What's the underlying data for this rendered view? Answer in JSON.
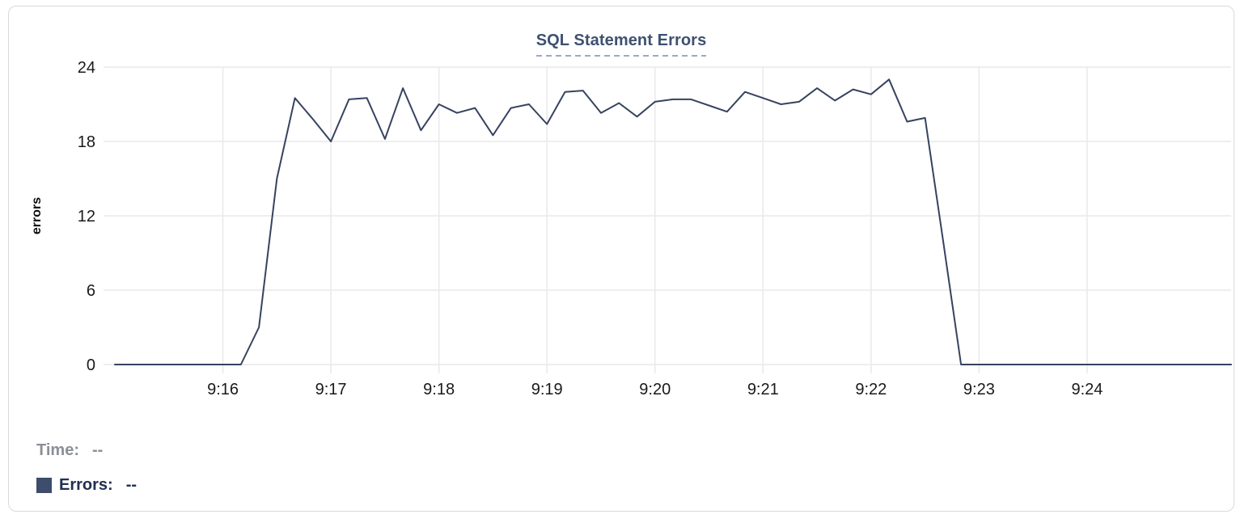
{
  "header": {
    "title": "SQL Statement Errors"
  },
  "legend": {
    "time_label": "Time:",
    "time_value": "--",
    "errors_label": "Errors:",
    "errors_value": "--",
    "swatch_color": "#3d4d6b"
  },
  "chart_data": {
    "type": "line",
    "title": "SQL Statement Errors",
    "xlabel": "",
    "ylabel": "errors",
    "x_start": "9:15:00",
    "x_end": "9:25:20",
    "sample_interval_seconds": 10,
    "ylim": [
      0,
      24
    ],
    "y_ticks": [
      0,
      6,
      12,
      18,
      24
    ],
    "x_ticks": [
      "9:16",
      "9:17",
      "9:18",
      "9:19",
      "9:20",
      "9:21",
      "9:22",
      "9:23",
      "9:24"
    ],
    "grid": true,
    "legend_position": "bottom-left",
    "series": [
      {
        "name": "Errors",
        "color": "#36435f",
        "values": [
          0,
          0,
          0,
          0,
          0,
          0,
          0,
          0,
          3,
          15,
          21.5,
          19.8,
          18,
          21.4,
          21.5,
          18.2,
          22.3,
          18.9,
          21,
          20.3,
          20.7,
          18.5,
          20.7,
          21,
          19.4,
          22,
          22.1,
          20.3,
          21.1,
          20,
          21.2,
          21.4,
          21.4,
          20.9,
          20.4,
          22,
          21.5,
          21,
          21.2,
          22.3,
          21.3,
          22.2,
          21.8,
          23,
          19.6,
          19.9,
          10,
          0,
          0,
          0,
          0,
          0,
          0,
          0,
          0,
          0,
          0,
          0,
          0,
          0,
          0,
          0,
          0
        ]
      }
    ]
  }
}
